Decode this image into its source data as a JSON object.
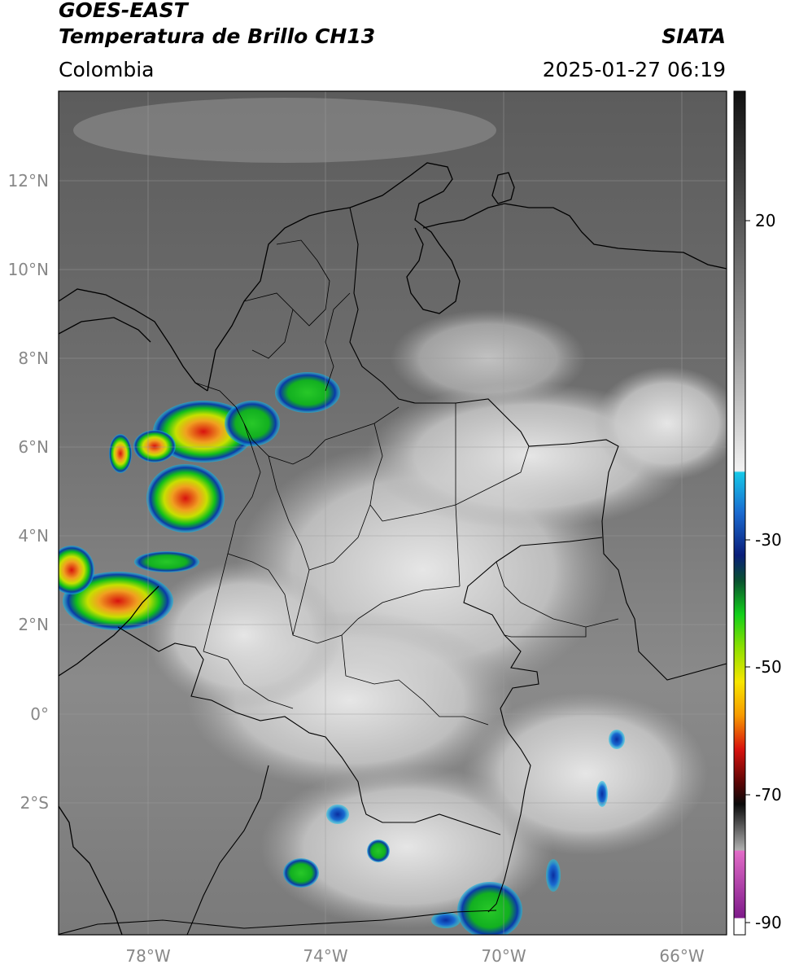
{
  "header": {
    "satellite": "GOES-EAST",
    "product": "Temperatura de Brillo CH13",
    "region": "Colombia",
    "brand": "SIATA",
    "timestamp": "2025-01-27 06:19"
  },
  "axes": {
    "lat_labels": [
      "12°N",
      "10°N",
      "8°N",
      "6°N",
      "4°N",
      "2°N",
      "0°",
      "2°S"
    ],
    "lon_labels": [
      "78°W",
      "74°W",
      "70°W",
      "66°W"
    ]
  },
  "colorbar": {
    "ticks": [
      "20",
      "-30",
      "-50",
      "-70",
      "-90"
    ],
    "colors": {
      "warm_gray_top": "#111111",
      "gray_mid": "#888888",
      "white": "#f2f2f2",
      "cyan": "#16c8e8",
      "blue": "#0a2ea0",
      "green": "#12d01a",
      "yellow": "#f7e600",
      "orange": "#f79a00",
      "red": "#d8120e",
      "black": "#0a0a0a",
      "pink": "#e36cc8",
      "purple": "#7e1a8a"
    }
  },
  "map_features": [
    "coastline",
    "country-borders",
    "department-borders",
    "graticule",
    "convective-cloud-tops"
  ]
}
